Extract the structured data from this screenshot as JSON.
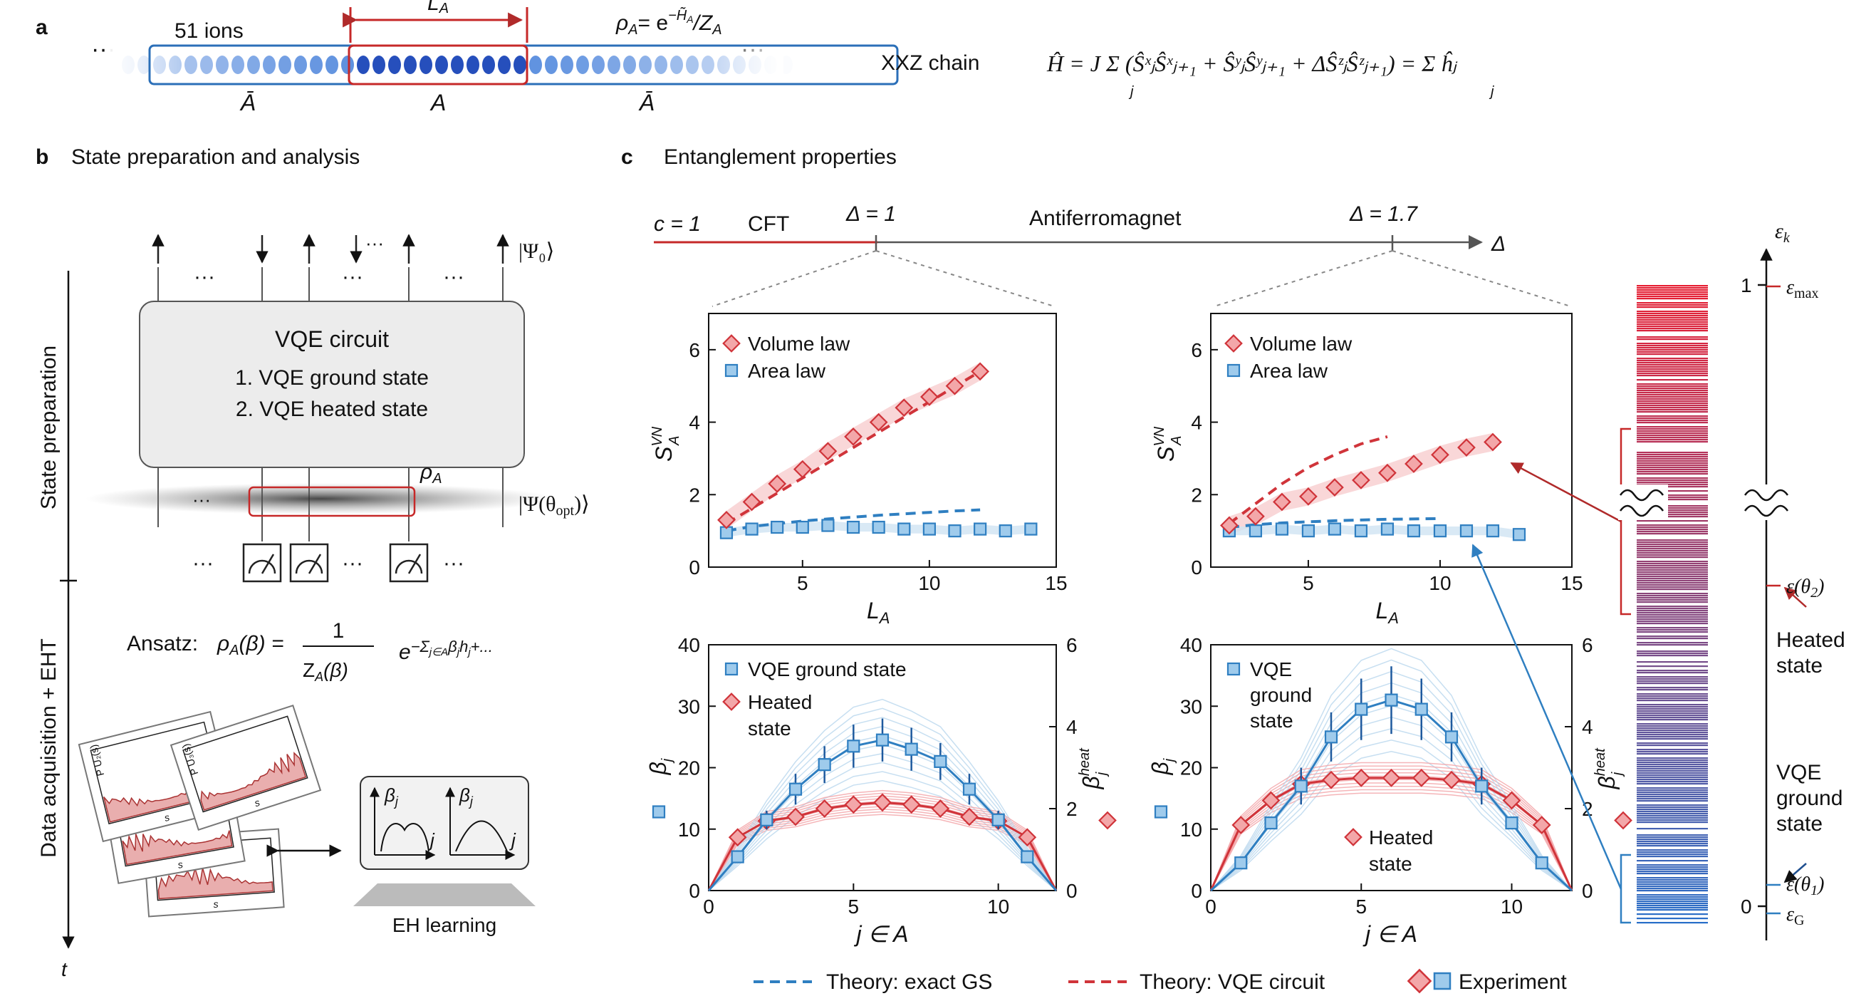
{
  "panels": {
    "a": {
      "letter": "a",
      "ions_label": "51 ions",
      "la_label": "L",
      "la_sub": "A",
      "rho_label": "ρ",
      "rho_sub": "A",
      "rho_eq": "= e",
      "rho_exp": "−H̃",
      "rho_exp_sub": "A",
      "rho_den": "/Z",
      "rho_den_sub": "A",
      "abar": "Ā",
      "a": "A",
      "dots": "···",
      "chain_label": "XXZ chain",
      "hamiltonian": "Ĥ = J Σ (ŜˣⱼŜˣⱼ₊₁ + ŜʸⱼŜʸⱼ₊₁ + ΔŜᶻⱼŜᶻⱼ₊₁) = Σ ĥⱼ",
      "sum_index": "j"
    },
    "b": {
      "letter": "b",
      "title": "State preparation and analysis",
      "psi0": "|Ψ₀⟩",
      "vqe_title": "VQE circuit",
      "vqe_item1": "1. VQE ground state",
      "vqe_item2": "2. VQE heated state",
      "rho_a": "ρ",
      "rho_a_sub": "A",
      "psi_opt": "|Ψ(θ",
      "psi_opt_sub": "opt",
      "psi_opt_end": ")⟩",
      "side_label_prep": "State preparation",
      "side_label_data": "Data acquisition + EHT",
      "t_label": "t",
      "ansatz_label": "Ansatz:",
      "ansatz_lhs": "ρ",
      "ansatz_lhs_sub": "A",
      "ansatz_lhs_arg": "(β) =",
      "ansatz_num": "1",
      "ansatz_den": "Z",
      "ansatz_den_sub": "A",
      "ansatz_den_arg": "(β)",
      "ansatz_exp": "e",
      "ansatz_exp_sup": "−Σ",
      "ansatz_exp_sup2": "j∈A",
      "ansatz_exp_sup3": "β",
      "ansatz_exp_sup4": "j",
      "ansatz_exp_sup5": "h",
      "ansatz_exp_sup6": "j",
      "ansatz_exp_sup7": "+...",
      "hist_labels": [
        "P",
        "P",
        "P",
        "s",
        "s",
        "s",
        "s"
      ],
      "hist_subs": [
        "U₁(s)",
        "U₂(s)",
        "U₃(s)"
      ],
      "eh_learning": "EH learning",
      "beta_j": "β",
      "beta_j_sub": "j",
      "j": "j"
    },
    "c": {
      "letter": "c",
      "title": "Entanglement properties",
      "c1": "c = 1",
      "cft": "CFT",
      "delta1": "Δ = 1",
      "afm": "Antiferromagnet",
      "delta17": "Δ = 1.7",
      "delta": "Δ"
    }
  },
  "chart_data": [
    {
      "type": "scatter",
      "xlabel": "L",
      "xlabel_sub": "A",
      "ylabel": "S",
      "ylabel_sup": "VN",
      "ylabel_sub": "A",
      "xlim": [
        1.3,
        15
      ],
      "ylim": [
        0,
        7
      ],
      "xticks": [
        5,
        10,
        15
      ],
      "yticks": [
        0,
        2,
        4,
        6
      ],
      "legend": [
        "Volume law",
        "Area law"
      ],
      "series": [
        {
          "name": "Volume law",
          "x": [
            2,
            3,
            4,
            5,
            6,
            7,
            8,
            9,
            10,
            11,
            12
          ],
          "y": [
            1.3,
            1.8,
            2.3,
            2.7,
            3.2,
            3.6,
            4.0,
            4.4,
            4.7,
            5.0,
            5.4
          ]
        },
        {
          "name": "Area law",
          "x": [
            2,
            3,
            4,
            5,
            6,
            7,
            8,
            9,
            10,
            11,
            12,
            13,
            14
          ],
          "y": [
            0.95,
            1.05,
            1.1,
            1.1,
            1.15,
            1.1,
            1.1,
            1.05,
            1.05,
            1.0,
            1.05,
            1.0,
            1.05
          ]
        }
      ],
      "theory_vqe": {
        "x": [
          2,
          12
        ],
        "y": [
          1.2,
          5.4
        ]
      },
      "theory_gs": {
        "x": [
          2,
          3,
          4,
          5,
          6,
          7,
          8,
          9,
          10,
          11,
          12
        ],
        "y": [
          1.0,
          1.12,
          1.2,
          1.27,
          1.33,
          1.38,
          1.43,
          1.47,
          1.51,
          1.55,
          1.58
        ]
      }
    },
    {
      "type": "scatter",
      "xlabel": "L",
      "xlabel_sub": "A",
      "ylabel": "S",
      "ylabel_sup": "VN",
      "ylabel_sub": "A",
      "xlim": [
        1.3,
        15
      ],
      "ylim": [
        0,
        7
      ],
      "xticks": [
        5,
        10,
        15
      ],
      "yticks": [
        0,
        2,
        4,
        6
      ],
      "legend": [
        "Volume law",
        "Area law"
      ],
      "series": [
        {
          "name": "Volume law",
          "x": [
            2,
            3,
            4,
            5,
            6,
            7,
            8,
            9,
            10,
            11,
            12
          ],
          "y": [
            1.15,
            1.4,
            1.8,
            1.95,
            2.2,
            2.4,
            2.6,
            2.85,
            3.1,
            3.3,
            3.45
          ]
        },
        {
          "name": "Area law",
          "x": [
            2,
            3,
            4,
            5,
            6,
            7,
            8,
            9,
            10,
            11,
            12,
            13
          ],
          "y": [
            1.0,
            1.0,
            1.05,
            1.0,
            1.05,
            1.0,
            1.05,
            1.0,
            1.0,
            1.0,
            1.0,
            0.9
          ]
        }
      ],
      "theory_vqe": {
        "x": [
          2,
          3,
          4,
          5,
          6,
          7,
          8
        ],
        "y": [
          1.2,
          1.75,
          2.3,
          2.75,
          3.1,
          3.4,
          3.6
        ]
      },
      "theory_gs": {
        "x": [
          2,
          3,
          4,
          5,
          6,
          7,
          8,
          9,
          10
        ],
        "y": [
          1.1,
          1.17,
          1.22,
          1.25,
          1.28,
          1.3,
          1.32,
          1.33,
          1.34
        ]
      }
    },
    {
      "type": "line",
      "xlabel": "j ∈ A",
      "ylabel_left": "β",
      "ylabel_left_sub": "j",
      "ylabel_right": "β",
      "ylabel_right_sup": "heat",
      "ylabel_right_sub": "j",
      "xlim": [
        0,
        12
      ],
      "ylim_left": [
        0,
        40
      ],
      "ylim_right": [
        0,
        6
      ],
      "xticks": [
        0,
        5,
        10
      ],
      "yticks_left": [
        0,
        10,
        20,
        30,
        40
      ],
      "yticks_right": [
        0,
        2,
        4,
        6
      ],
      "legend": [
        "VQE ground state",
        "Heated state"
      ],
      "series": [
        {
          "name": "VQE ground state",
          "x": [
            0,
            1,
            2,
            3,
            4,
            5,
            6,
            7,
            8,
            9,
            10,
            11,
            12
          ],
          "y": [
            0,
            5.5,
            11.5,
            16.5,
            20.5,
            23.5,
            24.5,
            23,
            21,
            16.5,
            11.5,
            5.5,
            0
          ],
          "err": [
            0,
            0,
            1.5,
            2.5,
            3,
            3.5,
            3.5,
            3.5,
            3,
            2.5,
            1.5,
            0,
            0
          ]
        },
        {
          "name": "Heated state",
          "x": [
            0,
            1,
            2,
            3,
            4,
            5,
            6,
            7,
            8,
            9,
            10,
            11,
            12
          ],
          "y": [
            0,
            1.3,
            1.7,
            1.8,
            2.0,
            2.1,
            2.15,
            2.1,
            2.0,
            1.8,
            1.7,
            1.3,
            0
          ],
          "err": [
            0,
            0,
            0.05,
            0.1,
            0.15,
            0.2,
            0.2,
            0.2,
            0.15,
            0.1,
            0.05,
            0,
            0
          ]
        }
      ]
    },
    {
      "type": "line",
      "xlabel": "j ∈ A",
      "ylabel_left": "β",
      "ylabel_left_sub": "j",
      "ylabel_right": "β",
      "ylabel_right_sup": "heat",
      "ylabel_right_sub": "j",
      "xlim": [
        0,
        12
      ],
      "ylim_left": [
        0,
        40
      ],
      "ylim_right": [
        0,
        6
      ],
      "xticks": [
        0,
        5,
        10
      ],
      "yticks_left": [
        0,
        10,
        20,
        30,
        40
      ],
      "yticks_right": [
        0,
        2,
        4,
        6
      ],
      "legend": [
        "VQE ground state",
        "Heated state"
      ],
      "series": [
        {
          "name": "VQE ground state",
          "x": [
            0,
            1,
            2,
            3,
            4,
            5,
            6,
            7,
            8,
            9,
            10,
            11,
            12
          ],
          "y": [
            0,
            4.5,
            11,
            17,
            25,
            29.5,
            31,
            29.5,
            25,
            17,
            11,
            4.5,
            0
          ],
          "err": [
            0,
            0,
            1,
            3,
            4,
            5,
            5.5,
            5,
            4,
            3,
            1,
            0,
            0
          ]
        },
        {
          "name": "Heated state",
          "x": [
            0,
            1,
            2,
            3,
            4,
            5,
            6,
            7,
            8,
            9,
            10,
            11,
            12
          ],
          "y": [
            0,
            1.6,
            2.2,
            2.6,
            2.7,
            2.75,
            2.75,
            2.75,
            2.7,
            2.6,
            2.2,
            1.6,
            0
          ],
          "err": [
            0,
            0,
            0.05,
            0.1,
            0.1,
            0.1,
            0.1,
            0.1,
            0.1,
            0.1,
            0.05,
            0,
            0
          ]
        }
      ],
      "annotation": "Heated state"
    }
  ],
  "legend_bottom": {
    "exact_gs": "Theory: exact GS",
    "vqe_circuit": "Theory: VQE circuit",
    "experiment": "Experiment"
  },
  "spectrum": {
    "axis_label": "ε",
    "axis_sub": "k",
    "one": "1",
    "zero": "0",
    "eps_max": "ε",
    "eps_max_sub": "max",
    "eps_theta2": "ε(θ",
    "eps_theta2_sub": "2",
    "eps_theta1": "ε(θ",
    "eps_theta1_sub": "1",
    "paren": ")",
    "eps_g": "ε",
    "eps_g_sub": "G",
    "heated1": "Heated",
    "heated2": "state",
    "vqe1": "VQE",
    "vqe2": "ground",
    "vqe3": "state"
  },
  "colors": {
    "red": "#d0343a",
    "blue": "#2f7fc1",
    "lightred": "#f2a3a6",
    "lightblue": "#b9d7ee",
    "gray": "#555555"
  }
}
